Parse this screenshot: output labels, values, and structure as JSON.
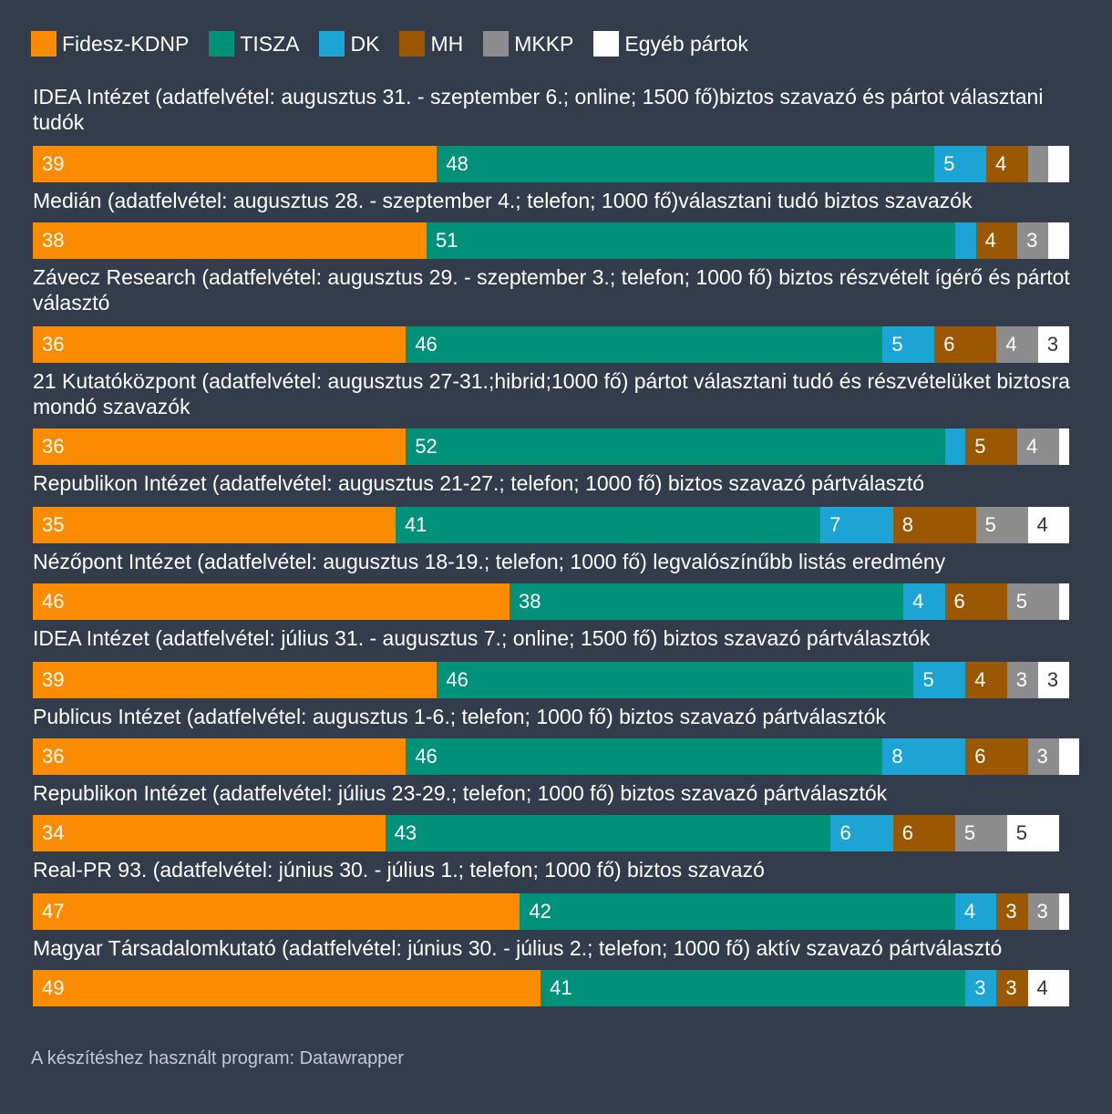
{
  "chart_data": {
    "type": "bar",
    "stacked": true,
    "orientation": "horizontal",
    "series": [
      {
        "name": "Fidesz-KDNP",
        "color": "#fb8c00"
      },
      {
        "name": "TISZA",
        "color": "#00917a"
      },
      {
        "name": "DK",
        "color": "#1ba4d4"
      },
      {
        "name": "MH",
        "color": "#9c5800"
      },
      {
        "name": "MKKP",
        "color": "#8d8d8d"
      },
      {
        "name": "Egyéb pártok",
        "color": "#ffffff"
      }
    ],
    "rows": [
      {
        "label": "IDEA Intézet (adatfelvétel: augusztus 31. - szeptember 6.; online; 1500 fő)biztos szavazó és pártot választani tudók",
        "values": [
          39,
          48,
          5,
          4,
          2,
          2
        ],
        "shown": [
          "39",
          "48",
          "5",
          "4",
          "",
          ""
        ]
      },
      {
        "label": "Medián (adatfelvétel: augusztus 28. - szeptember 4.; telefon; 1000 fő)választani tudó biztos szavazók",
        "values": [
          38,
          51,
          2,
          4,
          3,
          2
        ],
        "shown": [
          "38",
          "51",
          "",
          "4",
          "3",
          ""
        ]
      },
      {
        "label": "Závecz Research (adatfelvétel: augusztus 29. - szeptember 3.; telefon; 1000 fő) biztos részvételt ígérő és pártot választó",
        "values": [
          36,
          46,
          5,
          6,
          4,
          3
        ],
        "shown": [
          "36",
          "46",
          "5",
          "6",
          "4",
          "3"
        ]
      },
      {
        "label": "21 Kutatóközpont (adatfelvétel: augusztus 27-31.;hibrid;1000 fő) pártot választani tudó és részvételüket biztosra mondó szavazók",
        "values": [
          36,
          52,
          2,
          5,
          4,
          1
        ],
        "shown": [
          "36",
          "52",
          "",
          "5",
          "4",
          ""
        ]
      },
      {
        "label": "Republikon Intézet (adatfelvétel: augusztus 21-27.; telefon; 1000 fő) biztos szavazó pártválasztó",
        "values": [
          35,
          41,
          7,
          8,
          5,
          4
        ],
        "shown": [
          "35",
          "41",
          "7",
          "8",
          "5",
          "4"
        ]
      },
      {
        "label": "Nézőpont Intézet (adatfelvétel: augusztus 18-19.; telefon; 1000 fő) legvalószínűbb listás eredmény",
        "values": [
          46,
          38,
          4,
          6,
          5,
          1
        ],
        "shown": [
          "46",
          "38",
          "4",
          "6",
          "5",
          ""
        ]
      },
      {
        "label": "IDEA Intézet (adatfelvétel: július 31. - augusztus 7.; online; 1500 fő) biztos szavazó pártválasztók",
        "values": [
          39,
          46,
          5,
          4,
          3,
          3
        ],
        "shown": [
          "39",
          "46",
          "5",
          "4",
          "3",
          "3"
        ]
      },
      {
        "label": "Publicus Intézet (adatfelvétel: augusztus 1-6.; telefon; 1000 fő) biztos szavazó pártválasztók",
        "values": [
          36,
          46,
          8,
          6,
          3,
          2
        ],
        "shown": [
          "36",
          "46",
          "8",
          "6",
          "3",
          ""
        ]
      },
      {
        "label": "Republikon Intézet (adatfelvétel: július 23-29.; telefon; 1000 fő) biztos szavazó pártválasztók",
        "values": [
          34,
          43,
          6,
          6,
          5,
          5
        ],
        "shown": [
          "34",
          "43",
          "6",
          "6",
          "5",
          "5"
        ]
      },
      {
        "label": "Real-PR 93. (adatfelvétel: június 30. - július 1.; telefon; 1000 fő) biztos szavazó",
        "values": [
          47,
          42,
          4,
          3,
          3,
          1
        ],
        "shown": [
          "47",
          "42",
          "4",
          "3",
          "3",
          ""
        ]
      },
      {
        "label": "Magyar Társadalomkutató (adatfelvétel: június 30. - július 2.; telefon; 1000 fő) aktív szavazó pártválasztó",
        "values": [
          49,
          41,
          3,
          3,
          0,
          4
        ],
        "shown": [
          "49",
          "41",
          "3",
          "3",
          "",
          "4"
        ]
      }
    ]
  },
  "footer": "A készítéshez használt program: Datawrapper"
}
